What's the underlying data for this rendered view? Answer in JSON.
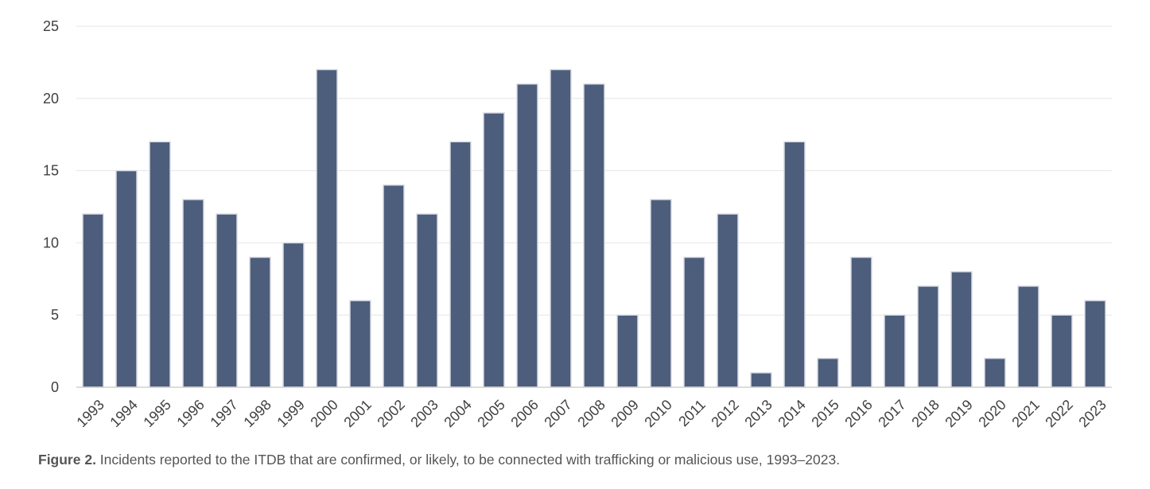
{
  "chart_data": {
    "type": "bar",
    "categories": [
      "1993",
      "1994",
      "1995",
      "1996",
      "1997",
      "1998",
      "1999",
      "2000",
      "2001",
      "2002",
      "2003",
      "2004",
      "2005",
      "2006",
      "2007",
      "2008",
      "2009",
      "2010",
      "2011",
      "2012",
      "2013",
      "2014",
      "2015",
      "2016",
      "2017",
      "2018",
      "2019",
      "2020",
      "2021",
      "2022",
      "2023"
    ],
    "values": [
      12,
      15,
      17,
      13,
      12,
      9,
      10,
      22,
      6,
      14,
      12,
      17,
      19,
      21,
      22,
      21,
      5,
      13,
      9,
      12,
      1,
      17,
      2,
      9,
      5,
      7,
      8,
      2,
      7,
      5,
      6
    ],
    "title": "",
    "xlabel": "",
    "ylabel": "",
    "ylim": [
      0,
      25
    ],
    "yticks": [
      0,
      5,
      10,
      15,
      20,
      25
    ],
    "grid": true,
    "bar_color": "#4d5d7c",
    "grid_color": "#e6e6e6"
  },
  "caption": {
    "label": "Figure 2.",
    "text": " Incidents reported to the ITDB that are confirmed, or likely, to be connected with trafficking or malicious use, 1993–2023."
  }
}
